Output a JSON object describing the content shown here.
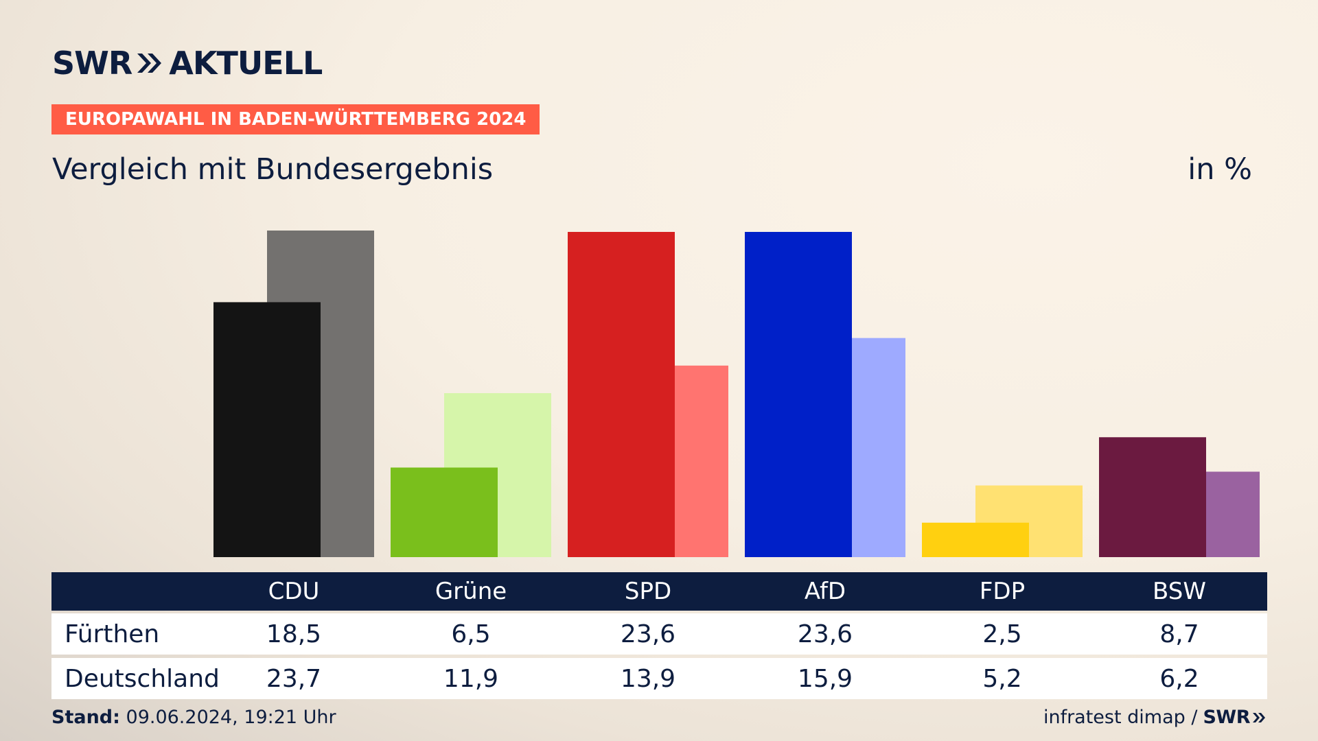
{
  "header": {
    "logo_brand": "SWR",
    "logo_product": "AKTUELL",
    "kicker": "EUROPAWAHL IN BADEN-WÜRTTEMBERG 2024",
    "title": "Vergleich mit Bundesergebnis",
    "unit": "in %"
  },
  "chart_data": {
    "type": "bar",
    "title": "Vergleich mit Bundesergebnis",
    "ylabel": "in %",
    "categories": [
      "CDU",
      "Grüne",
      "SPD",
      "AfD",
      "FDP",
      "BSW"
    ],
    "series": [
      {
        "name": "Fürthen",
        "values": [
          18.5,
          6.5,
          23.6,
          23.6,
          2.5,
          8.7
        ]
      },
      {
        "name": "Deutschland",
        "values": [
          23.7,
          11.9,
          13.9,
          15.9,
          5.2,
          6.2
        ]
      }
    ],
    "colors": {
      "primary": [
        "#141414",
        "#7abf1c",
        "#d62020",
        "#0020c8",
        "#ffd010",
        "#6b1a40"
      ],
      "secondary": [
        "#73716f",
        "#d6f5aa",
        "#ff7470",
        "#9eaaff",
        "#ffe172",
        "#9a62a0"
      ]
    },
    "ylim": [
      0,
      23.7
    ]
  },
  "table": {
    "rows": [
      {
        "label": "Fürthen",
        "values": [
          "18,5",
          "6,5",
          "23,6",
          "23,6",
          "2,5",
          "8,7"
        ]
      },
      {
        "label": "Deutschland",
        "values": [
          "23,7",
          "11,9",
          "13,9",
          "15,9",
          "5,2",
          "6,2"
        ]
      }
    ]
  },
  "footer": {
    "stand_label": "Stand:",
    "stand_value": "09.06.2024, 19:21 Uhr",
    "source": "infratest dimap /",
    "source_brand": "SWR"
  },
  "colors": {
    "navy": "#0d1d3f",
    "accent": "#ff5c45"
  }
}
